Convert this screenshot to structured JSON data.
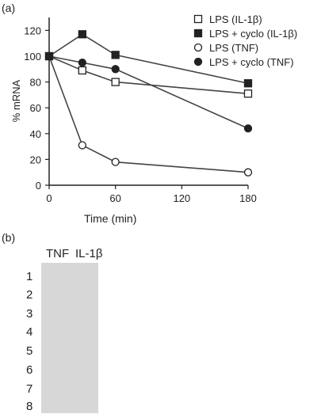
{
  "panel_labels": {
    "a": "(a)",
    "b": "(b)"
  },
  "chart_data": {
    "type": "line",
    "title": "",
    "xlabel": "Time (min)",
    "ylabel": "% mRNA",
    "xlim": [
      0,
      180
    ],
    "ylim": [
      0,
      130
    ],
    "xticks": [
      0,
      60,
      120,
      180
    ],
    "yticks": [
      0,
      20,
      40,
      60,
      80,
      100,
      120
    ],
    "legend_position": "top-right",
    "series": [
      {
        "name": "LPS (IL-1β)",
        "marker": "open-square",
        "x": [
          0,
          30,
          60,
          180
        ],
        "y": [
          100,
          89,
          80,
          71
        ]
      },
      {
        "name": "LPS + cyclo (IL-1β)",
        "marker": "filled-square",
        "x": [
          0,
          30,
          60,
          180
        ],
        "y": [
          100,
          117,
          101,
          79
        ]
      },
      {
        "name": "LPS (TNF)",
        "marker": "open-circle",
        "x": [
          0,
          30,
          60,
          180
        ],
        "y": [
          100,
          31,
          18,
          10
        ]
      },
      {
        "name": "LPS + cyclo (TNF)",
        "marker": "filled-circle",
        "x": [
          0,
          30,
          60,
          180
        ],
        "y": [
          100,
          95,
          90,
          44
        ]
      }
    ]
  },
  "gel": {
    "columns": [
      "TNF",
      "IL-1β"
    ],
    "lanes": [
      "1",
      "2",
      "3",
      "4",
      "5",
      "6",
      "7",
      "8"
    ]
  }
}
